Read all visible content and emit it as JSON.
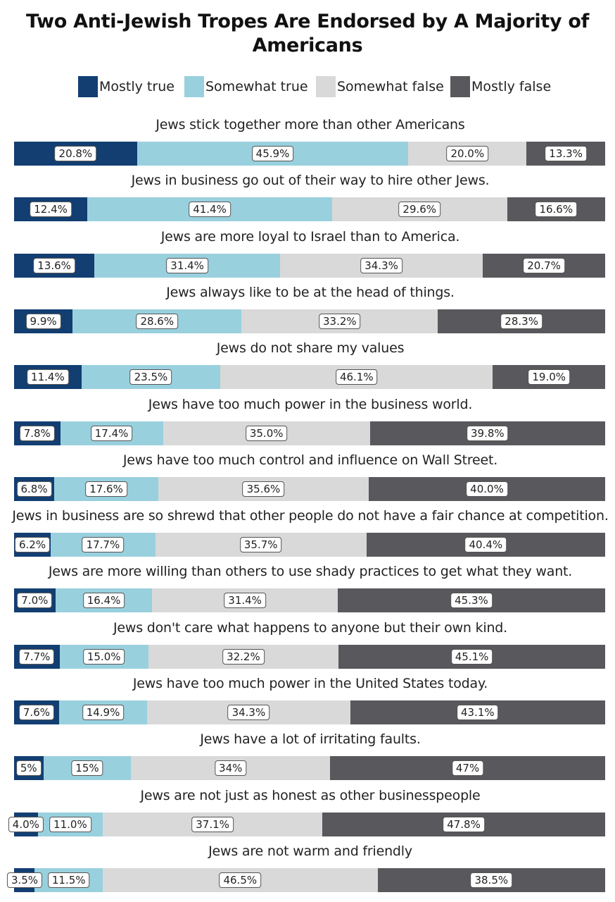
{
  "chart_data": {
    "type": "bar",
    "orientation": "horizontal",
    "stacked": true,
    "title": "Two Anti-Jewish Tropes Are Endorsed by A Majority of Americans",
    "legend_position": "top",
    "series": [
      {
        "name": "Mostly true",
        "color": "#123e72"
      },
      {
        "name": "Somewhat true",
        "color": "#99d0de"
      },
      {
        "name": "Somewhat false",
        "color": "#d9d9d9"
      },
      {
        "name": "Mostly false",
        "color": "#58585d"
      }
    ],
    "categories": [
      {
        "label": "Jews stick together more than other Americans",
        "values": [
          20.8,
          45.9,
          20.0,
          13.3
        ],
        "value_labels": [
          "20.8%",
          "45.9%",
          "20.0%",
          "13.3%"
        ]
      },
      {
        "label": "Jews in business go out of their way to hire other Jews.",
        "values": [
          12.4,
          41.4,
          29.6,
          16.6
        ],
        "value_labels": [
          "12.4%",
          "41.4%",
          "29.6%",
          "16.6%"
        ]
      },
      {
        "label": "Jews are more loyal to Israel than to America.",
        "values": [
          13.6,
          31.4,
          34.3,
          20.7
        ],
        "value_labels": [
          "13.6%",
          "31.4%",
          "34.3%",
          "20.7%"
        ]
      },
      {
        "label": "Jews always like to be at the head of things.",
        "values": [
          9.9,
          28.6,
          33.2,
          28.3
        ],
        "value_labels": [
          "9.9%",
          "28.6%",
          "33.2%",
          "28.3%"
        ]
      },
      {
        "label": "Jews do not share my values",
        "values": [
          11.4,
          23.5,
          46.1,
          19.0
        ],
        "value_labels": [
          "11.4%",
          "23.5%",
          "46.1%",
          "19.0%"
        ]
      },
      {
        "label": "Jews have too much power in the business world.",
        "values": [
          7.8,
          17.4,
          35.0,
          39.8
        ],
        "value_labels": [
          "7.8%",
          "17.4%",
          "35.0%",
          "39.8%"
        ]
      },
      {
        "label": "Jews have too much control and influence on Wall Street.",
        "values": [
          6.8,
          17.6,
          35.6,
          40.0
        ],
        "value_labels": [
          "6.8%",
          "17.6%",
          "35.6%",
          "40.0%"
        ]
      },
      {
        "label": "Jews in business are so shrewd that other people do not have a fair chance at competition.",
        "values": [
          6.2,
          17.7,
          35.7,
          40.4
        ],
        "value_labels": [
          "6.2%",
          "17.7%",
          "35.7%",
          "40.4%"
        ]
      },
      {
        "label": "Jews are more willing than others to use shady practices to get what they want.",
        "values": [
          7.0,
          16.4,
          31.4,
          45.3
        ],
        "value_labels": [
          "7.0%",
          "16.4%",
          "31.4%",
          "45.3%"
        ]
      },
      {
        "label": "Jews don't care what happens to anyone but their own kind.",
        "values": [
          7.7,
          15.0,
          32.2,
          45.1
        ],
        "value_labels": [
          "7.7%",
          "15.0%",
          "32.2%",
          "45.1%"
        ]
      },
      {
        "label": "Jews have too much power in the United States today.",
        "values": [
          7.6,
          14.9,
          34.3,
          43.1
        ],
        "value_labels": [
          "7.6%",
          "14.9%",
          "34.3%",
          "43.1%"
        ]
      },
      {
        "label": "Jews have a lot of irritating faults.",
        "values": [
          5,
          15,
          34,
          47
        ],
        "value_labels": [
          "5%",
          "15%",
          "34%",
          "47%"
        ]
      },
      {
        "label": "Jews are not just as honest as other businesspeople",
        "values": [
          4.0,
          11.0,
          37.1,
          47.8
        ],
        "value_labels": [
          "4.0%",
          "11.0%",
          "37.1%",
          "47.8%"
        ]
      },
      {
        "label": "Jews are not warm and friendly",
        "values": [
          3.5,
          11.5,
          46.5,
          38.5
        ],
        "value_labels": [
          "3.5%",
          "11.5%",
          "46.5%",
          "38.5%"
        ]
      }
    ]
  }
}
